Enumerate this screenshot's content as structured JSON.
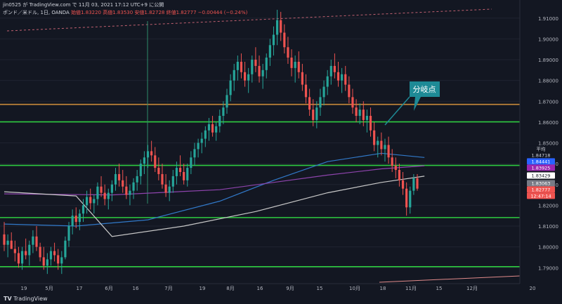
{
  "header": {
    "published": "jin0525 が TradingView.com で 11月 03, 2021 17:12 UTC+9 に公開",
    "symbol": "ポンド／米ドル, 1日, OANDA",
    "ohlc": "始値1.83220  高値1.83530  安値1.82728  終値1.82777  −0.00444 (−0.24%)"
  },
  "footer": {
    "brand": "TradingView"
  },
  "chart_data": {
    "type": "candlestick",
    "price_axis": {
      "ylim": [
        1.783,
        1.916
      ],
      "ticks": [
        "1.91000",
        "1.90000",
        "1.89000",
        "1.88000",
        "1.87000",
        "1.86000",
        "1.85000",
        "1.84000",
        "1.83000",
        "1.82000",
        "1.81000",
        "1.80000",
        "1.79000"
      ]
    },
    "time_axis": {
      "ticks": [
        "19",
        "5月",
        "17",
        "6月",
        "16",
        "7月",
        "19",
        "8月",
        "16",
        "9月",
        "15",
        "10月",
        "18",
        "11月",
        "15",
        "12月",
        "20"
      ]
    },
    "price_labels": [
      {
        "text": "平均",
        "value": 1.84718,
        "color": "#131722",
        "text_color": "#d1d4dc"
      },
      {
        "text": "1.84718",
        "value": 1.84718,
        "color": "#131722",
        "text_color": "#d1d4dc"
      },
      {
        "text": "1.84441",
        "value": 1.84441,
        "color": "#2962ff",
        "text_color": "#ffffff"
      },
      {
        "text": "1.83925",
        "value": 1.83925,
        "color": "#9c27b0",
        "text_color": "#ffffff"
      },
      {
        "text": "1.83429",
        "value": 1.83429,
        "color": "#ffffff",
        "text_color": "#131722"
      },
      {
        "text": "1.83063",
        "value": 1.83063,
        "color": "#787b86",
        "text_color": "#ffffff"
      },
      {
        "text": "1.82777",
        "value": 1.82777,
        "color": "#ef5350",
        "text_color": "#ffffff"
      },
      {
        "text": "12:47:14",
        "value": 1.82777,
        "color": "#ef5350",
        "text_color": "#ffffff"
      }
    ],
    "annotation": {
      "text": "分岐点",
      "color": "#1e8a96"
    },
    "horizontal_lines": [
      {
        "value": 1.8685,
        "color": "#c98a3a"
      },
      {
        "value": 1.8601,
        "color": "#2ecc40"
      },
      {
        "value": 1.8392,
        "color": "#2ecc40"
      },
      {
        "value": 1.8141,
        "color": "#2ecc40"
      },
      {
        "value": 1.7905,
        "color": "#2ecc40"
      }
    ],
    "candles": [
      [
        1.806,
        1.812,
        1.798,
        1.801
      ],
      [
        1.801,
        1.806,
        1.795,
        1.803
      ],
      [
        1.803,
        1.807,
        1.799,
        1.799
      ],
      [
        1.799,
        1.803,
        1.793,
        1.797
      ],
      [
        1.797,
        1.8,
        1.79,
        1.792
      ],
      [
        1.792,
        1.8,
        1.789,
        1.798
      ],
      [
        1.798,
        1.804,
        1.794,
        1.796
      ],
      [
        1.796,
        1.803,
        1.791,
        1.801
      ],
      [
        1.801,
        1.808,
        1.797,
        1.805
      ],
      [
        1.805,
        1.81,
        1.798,
        1.8
      ],
      [
        1.8,
        1.802,
        1.793,
        1.795
      ],
      [
        1.795,
        1.8,
        1.789,
        1.791
      ],
      [
        1.791,
        1.797,
        1.787,
        1.794
      ],
      [
        1.794,
        1.8,
        1.791,
        1.798
      ],
      [
        1.798,
        1.802,
        1.793,
        1.796
      ],
      [
        1.796,
        1.799,
        1.789,
        1.792
      ],
      [
        1.792,
        1.798,
        1.787,
        1.795
      ],
      [
        1.795,
        1.805,
        1.794,
        1.803
      ],
      [
        1.803,
        1.812,
        1.8,
        1.81
      ],
      [
        1.81,
        1.818,
        1.806,
        1.815
      ],
      [
        1.815,
        1.819,
        1.809,
        1.812
      ],
      [
        1.812,
        1.818,
        1.808,
        1.816
      ],
      [
        1.816,
        1.823,
        1.812,
        1.82
      ],
      [
        1.82,
        1.827,
        1.816,
        1.824
      ],
      [
        1.824,
        1.828,
        1.818,
        1.821
      ],
      [
        1.821,
        1.825,
        1.816,
        1.823
      ],
      [
        1.823,
        1.831,
        1.82,
        1.829
      ],
      [
        1.829,
        1.834,
        1.824,
        1.826
      ],
      [
        1.826,
        1.83,
        1.82,
        1.823
      ],
      [
        1.823,
        1.828,
        1.818,
        1.826
      ],
      [
        1.826,
        1.832,
        1.822,
        1.83
      ],
      [
        1.83,
        1.838,
        1.827,
        1.835
      ],
      [
        1.835,
        1.84,
        1.829,
        1.832
      ],
      [
        1.832,
        1.837,
        1.826,
        1.829
      ],
      [
        1.829,
        1.834,
        1.823,
        1.825
      ],
      [
        1.825,
        1.83,
        1.82,
        1.827
      ],
      [
        1.827,
        1.833,
        1.823,
        1.831
      ],
      [
        1.831,
        1.837,
        1.827,
        1.834
      ],
      [
        1.834,
        1.842,
        1.83,
        1.84
      ],
      [
        1.84,
        1.846,
        1.835,
        1.843
      ],
      [
        1.843,
        1.849,
        1.838,
        1.846
      ],
      [
        1.846,
        1.851,
        1.841,
        1.844
      ],
      [
        1.844,
        1.848,
        1.836,
        1.838
      ],
      [
        1.838,
        1.843,
        1.832,
        1.835
      ],
      [
        1.835,
        1.84,
        1.828,
        1.83
      ],
      [
        1.83,
        1.835,
        1.824,
        1.826
      ],
      [
        1.826,
        1.832,
        1.822,
        1.829
      ],
      [
        1.829,
        1.837,
        1.826,
        1.834
      ],
      [
        1.834,
        1.841,
        1.83,
        1.838
      ],
      [
        1.838,
        1.844,
        1.834,
        1.836
      ],
      [
        1.836,
        1.84,
        1.83,
        1.832
      ],
      [
        1.832,
        1.84,
        1.829,
        1.838
      ],
      [
        1.838,
        1.846,
        1.835,
        1.843
      ],
      [
        1.843,
        1.85,
        1.839,
        1.847
      ],
      [
        1.847,
        1.852,
        1.843,
        1.85
      ],
      [
        1.85,
        1.855,
        1.845,
        1.852
      ],
      [
        1.852,
        1.858,
        1.848,
        1.856
      ],
      [
        1.856,
        1.862,
        1.851,
        1.859
      ],
      [
        1.859,
        1.863,
        1.853,
        1.855
      ],
      [
        1.855,
        1.86,
        1.851,
        1.858
      ],
      [
        1.858,
        1.866,
        1.855,
        1.863
      ],
      [
        1.863,
        1.87,
        1.859,
        1.867
      ],
      [
        1.867,
        1.876,
        1.864,
        1.873
      ],
      [
        1.873,
        1.883,
        1.87,
        1.88
      ],
      [
        1.88,
        1.888,
        1.875,
        1.885
      ],
      [
        1.885,
        1.892,
        1.88,
        1.889
      ],
      [
        1.889,
        1.893,
        1.881,
        1.884
      ],
      [
        1.884,
        1.889,
        1.877,
        1.88
      ],
      [
        1.88,
        1.886,
        1.874,
        1.883
      ],
      [
        1.883,
        1.892,
        1.879,
        1.89
      ],
      [
        1.89,
        1.896,
        1.884,
        1.887
      ],
      [
        1.887,
        1.892,
        1.879,
        1.882
      ],
      [
        1.882,
        1.888,
        1.876,
        1.885
      ],
      [
        1.885,
        1.893,
        1.881,
        1.891
      ],
      [
        1.891,
        1.9,
        1.887,
        1.897
      ],
      [
        1.897,
        1.906,
        1.892,
        1.902
      ],
      [
        1.902,
        1.914,
        1.897,
        1.909
      ],
      [
        1.909,
        1.913,
        1.899,
        1.903
      ],
      [
        1.903,
        1.907,
        1.893,
        1.896
      ],
      [
        1.896,
        1.901,
        1.888,
        1.891
      ],
      [
        1.891,
        1.895,
        1.882,
        1.886
      ],
      [
        1.886,
        1.892,
        1.879,
        1.889
      ],
      [
        1.889,
        1.894,
        1.881,
        1.884
      ],
      [
        1.884,
        1.888,
        1.875,
        1.878
      ],
      [
        1.878,
        1.883,
        1.869,
        1.872
      ],
      [
        1.872,
        1.876,
        1.863,
        1.866
      ],
      [
        1.866,
        1.871,
        1.858,
        1.861
      ],
      [
        1.861,
        1.87,
        1.857,
        1.867
      ],
      [
        1.867,
        1.876,
        1.863,
        1.872
      ],
      [
        1.872,
        1.88,
        1.868,
        1.877
      ],
      [
        1.877,
        1.885,
        1.873,
        1.882
      ],
      [
        1.882,
        1.89,
        1.878,
        1.887
      ],
      [
        1.887,
        1.893,
        1.881,
        1.884
      ],
      [
        1.884,
        1.889,
        1.877,
        1.88
      ],
      [
        1.88,
        1.886,
        1.874,
        1.883
      ],
      [
        1.883,
        1.887,
        1.875,
        1.878
      ],
      [
        1.878,
        1.882,
        1.869,
        1.872
      ],
      [
        1.872,
        1.876,
        1.864,
        1.867
      ],
      [
        1.867,
        1.871,
        1.86,
        1.863
      ],
      [
        1.863,
        1.869,
        1.859,
        1.866
      ],
      [
        1.866,
        1.87,
        1.858,
        1.861
      ],
      [
        1.861,
        1.866,
        1.855,
        1.863
      ],
      [
        1.863,
        1.867,
        1.853,
        1.856
      ],
      [
        1.856,
        1.86,
        1.846,
        1.849
      ],
      [
        1.849,
        1.853,
        1.843,
        1.851
      ],
      [
        1.851,
        1.855,
        1.844,
        1.847
      ],
      [
        1.847,
        1.852,
        1.841,
        1.849
      ],
      [
        1.849,
        1.853,
        1.84,
        1.843
      ],
      [
        1.843,
        1.847,
        1.836,
        1.839
      ],
      [
        1.839,
        1.843,
        1.833,
        1.837
      ],
      [
        1.837,
        1.84,
        1.829,
        1.832
      ],
      [
        1.832,
        1.836,
        1.825,
        1.828
      ],
      [
        1.828,
        1.831,
        1.815,
        1.819
      ],
      [
        1.819,
        1.829,
        1.816,
        1.827
      ],
      [
        1.827,
        1.835,
        1.825,
        1.833
      ],
      [
        1.833,
        1.835,
        1.827,
        1.828
      ]
    ],
    "moving_averages": [
      {
        "color": "#3179c9",
        "points": [
          [
            0,
            1.811
          ],
          [
            20,
            1.81
          ],
          [
            40,
            1.813
          ],
          [
            60,
            1.822
          ],
          [
            75,
            1.832
          ],
          [
            90,
            1.841
          ],
          [
            105,
            1.845
          ],
          [
            117,
            1.843
          ]
        ]
      },
      {
        "color": "#8e44ad",
        "points": [
          [
            0,
            1.8255
          ],
          [
            30,
            1.825
          ],
          [
            60,
            1.8275
          ],
          [
            90,
            1.8345
          ],
          [
            105,
            1.8375
          ],
          [
            117,
            1.839
          ]
        ]
      },
      {
        "color": "#c8c8c8",
        "points": [
          [
            0,
            1.8265
          ],
          [
            20,
            1.8245
          ],
          [
            30,
            1.805
          ],
          [
            50,
            1.81
          ],
          [
            70,
            1.817
          ],
          [
            90,
            1.826
          ],
          [
            105,
            1.831
          ],
          [
            117,
            1.834
          ]
        ]
      }
    ]
  }
}
